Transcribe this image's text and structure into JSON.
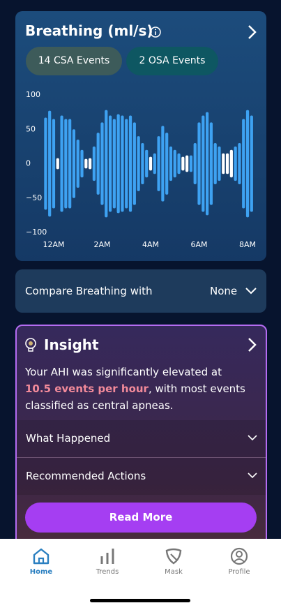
{
  "header": {
    "title": "Breathing (ml/s)",
    "chips": [
      "14 CSA Events",
      "2 OSA Events"
    ]
  },
  "chart_data": {
    "type": "range-bar",
    "x": [
      -20,
      -10,
      0,
      10,
      20,
      30,
      40,
      50,
      60,
      70,
      80,
      90,
      100,
      110,
      120,
      130,
      140,
      150,
      160,
      170,
      180,
      190,
      200,
      210,
      220,
      230,
      240,
      250,
      260,
      270,
      280,
      290,
      300,
      310,
      320,
      330,
      340,
      350,
      360,
      370,
      380,
      390,
      400,
      410,
      420,
      430,
      440,
      450,
      460,
      470,
      480,
      490
    ],
    "values": [
      67,
      77,
      65,
      8,
      70,
      65,
      65,
      50,
      35,
      20,
      7,
      8,
      25,
      45,
      60,
      78,
      70,
      65,
      72,
      70,
      65,
      70,
      60,
      40,
      30,
      20,
      10,
      15,
      40,
      55,
      45,
      25,
      20,
      15,
      10,
      12,
      12,
      30,
      60,
      70,
      75,
      60,
      30,
      25,
      15,
      15,
      20,
      25,
      30,
      65,
      78,
      70
    ],
    "colors": [
      "#3ea2f2",
      "#3ea2f2",
      "#3ea2f2",
      "#ffffff",
      "#3ea2f2",
      "#3ea2f2",
      "#3ea2f2",
      "#3ea2f2",
      "#3ea2f2",
      "#3ea2f2",
      "#ffffff",
      "#ffffff",
      "#3ea2f2",
      "#3ea2f2",
      "#3ea2f2",
      "#3ea2f2",
      "#3ea2f2",
      "#3ea2f2",
      "#3ea2f2",
      "#3ea2f2",
      "#3ea2f2",
      "#3ea2f2",
      "#3ea2f2",
      "#3ea2f2",
      "#3ea2f2",
      "#3ea2f2",
      "#ffffff",
      "#3ea2f2",
      "#3ea2f2",
      "#3ea2f2",
      "#3ea2f2",
      "#3ea2f2",
      "#3ea2f2",
      "#3ea2f2",
      "#ffffff",
      "#ffffff",
      "#3ea2f2",
      "#3ea2f2",
      "#3ea2f2",
      "#3ea2f2",
      "#3ea2f2",
      "#3ea2f2",
      "#3ea2f2",
      "#3ea2f2",
      "#ffffff",
      "#ffffff",
      "#ffffff",
      "#3ea2f2",
      "#3ea2f2",
      "#3ea2f2",
      "#3ea2f2",
      "#3ea2f2"
    ],
    "xlim": [
      -30,
      510
    ],
    "xticks": [
      {
        "value": 0,
        "label": "12AM"
      },
      {
        "value": 120,
        "label": "2AM"
      },
      {
        "value": 240,
        "label": "4AM"
      },
      {
        "value": 360,
        "label": "6AM"
      },
      {
        "value": 480,
        "label": "8AM"
      }
    ],
    "ylim": [
      -100,
      100
    ],
    "yticks": [
      100,
      50,
      0,
      {
        "value": -50,
        "label": "−50"
      },
      {
        "value": -100,
        "label": "−100"
      }
    ]
  },
  "compare": {
    "label": "Compare Breathing with",
    "value": "None"
  },
  "insight": {
    "title": "Insight",
    "text_before": "Your AHI was significantly elevated at ",
    "highlight": "10.5 events per hour",
    "text_after": ", with most events classified as central apneas.",
    "sections": [
      "What Happened",
      "Recommended Actions"
    ],
    "button": "Read More"
  },
  "nav": [
    "Home",
    "Trends",
    "Mask",
    "Profile"
  ]
}
